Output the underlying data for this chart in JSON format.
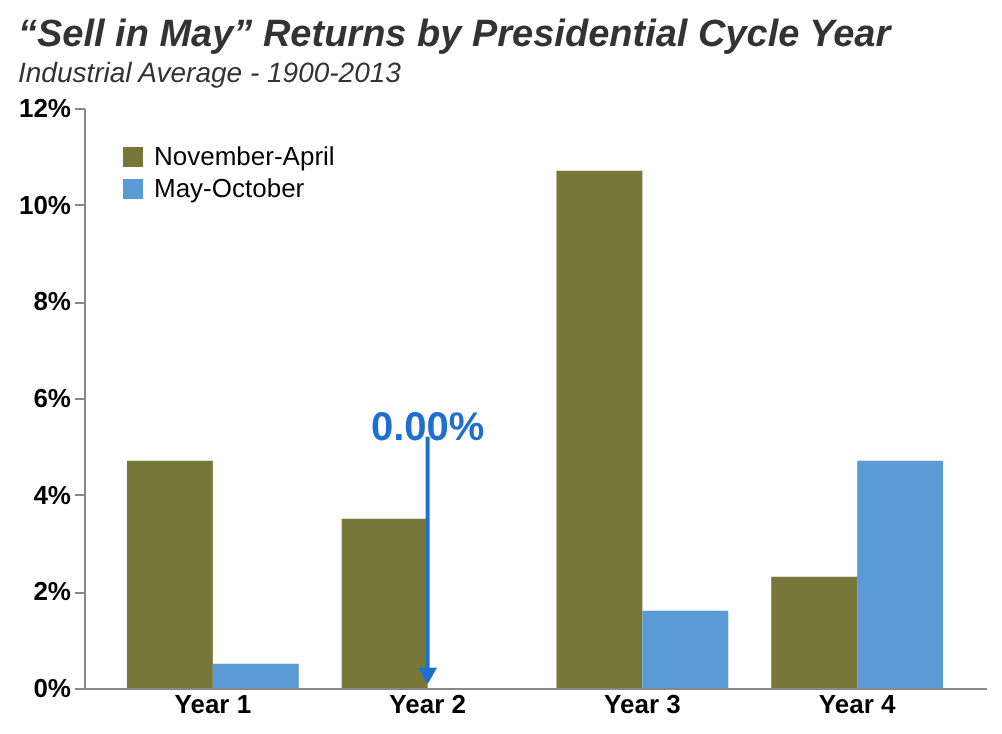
{
  "chart_data": {
    "type": "bar",
    "title": "“Sell in May” Returns by Presidential Cycle Year",
    "subtitle": "Industrial Average - 1900-2013",
    "categories": [
      "Year 1",
      "Year 2",
      "Year 3",
      "Year 4"
    ],
    "series": [
      {
        "name": "November-April",
        "color": "#77773a",
        "values": [
          4.7,
          3.5,
          10.7,
          2.3
        ]
      },
      {
        "name": "May-October",
        "color": "#5b9bd5",
        "values": [
          0.5,
          0.0,
          1.6,
          4.7
        ]
      }
    ],
    "ylim": [
      0,
      12
    ],
    "yticks": [
      {
        "value": 0,
        "label": "0%"
      },
      {
        "value": 2,
        "label": "2%"
      },
      {
        "value": 4,
        "label": "4%"
      },
      {
        "value": 6,
        "label": "6%"
      },
      {
        "value": 8,
        "label": "8%"
      },
      {
        "value": 10,
        "label": "10%"
      },
      {
        "value": 12,
        "label": "12%"
      }
    ],
    "annotations": [
      {
        "text": "0.00%",
        "x": "Year 2",
        "y": 0
      }
    ],
    "legend": "top left",
    "grid": false
  }
}
